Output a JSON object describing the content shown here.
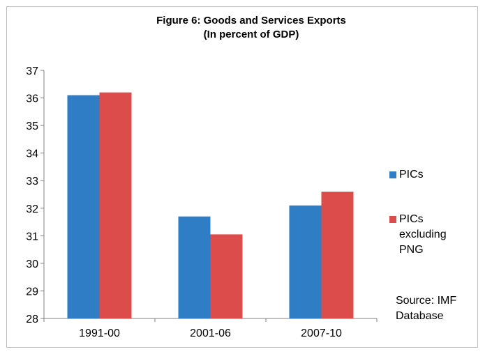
{
  "colors": {
    "pics": "#2e7dc5",
    "pics_excl_png": "#dc4c4a",
    "axis": "#808080",
    "frame": "#bfbfbf"
  },
  "chart_data": {
    "type": "bar",
    "title_line1": "Figure 6: Goods and Services Exports",
    "title_line2": "(In percent of GDP)",
    "categories": [
      "1991-00",
      "2001-06",
      "2007-10"
    ],
    "series": [
      {
        "name": "PICs",
        "values": [
          36.1,
          31.7,
          32.1
        ]
      },
      {
        "name": "PICs excluding PNG",
        "values": [
          36.2,
          31.05,
          32.6
        ]
      }
    ],
    "ylim": [
      28,
      37
    ],
    "yticks": [
      "37",
      "36",
      "35",
      "34",
      "33",
      "32",
      "31",
      "30",
      "29",
      "28"
    ],
    "grid": false,
    "legend_position": "right",
    "source_note": "Source: IMF Database"
  }
}
